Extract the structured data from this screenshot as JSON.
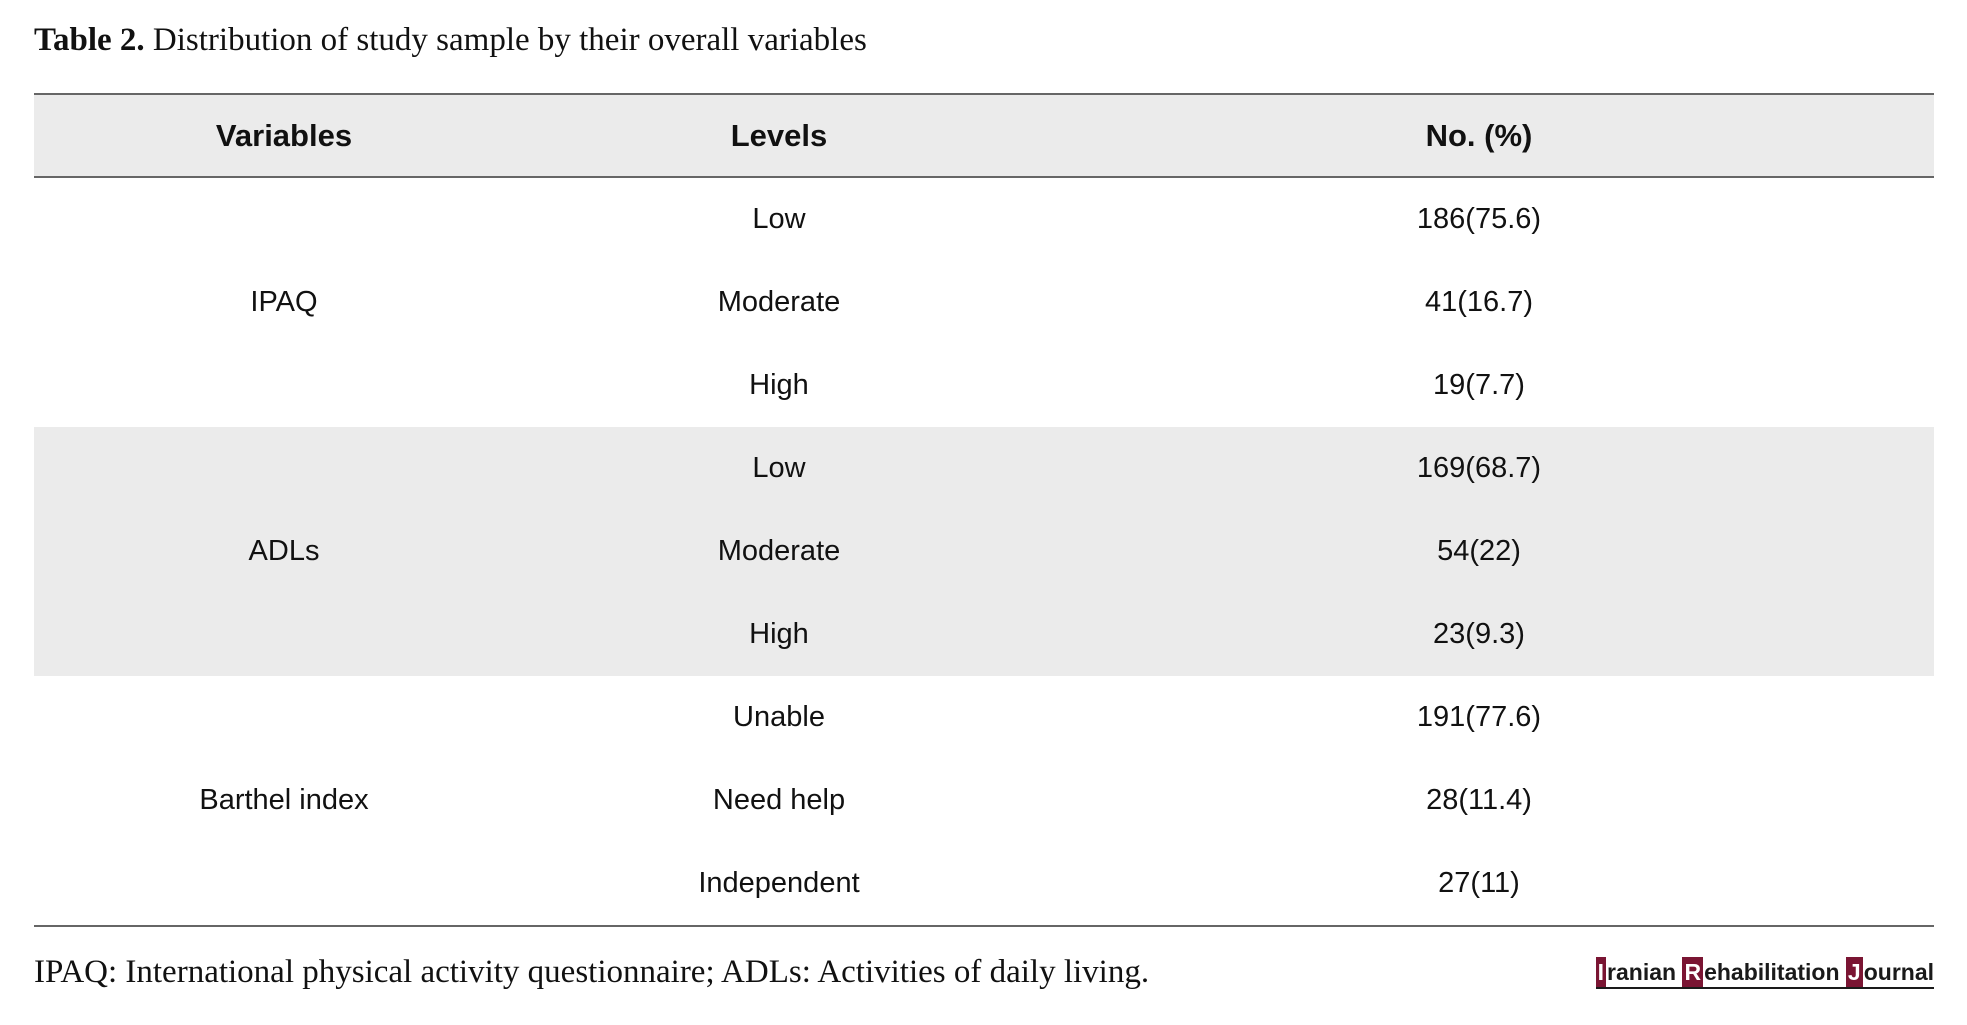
{
  "caption": {
    "label": "Table 2.",
    "text": "Distribution of study sample by their overall variables"
  },
  "table": {
    "headers": [
      "Variables",
      "Levels",
      "No. (%)"
    ],
    "groups": [
      {
        "variable": "IPAQ",
        "rows": [
          {
            "level": "Low",
            "value": "186(75.6)"
          },
          {
            "level": "Moderate",
            "value": "41(16.7)"
          },
          {
            "level": "High",
            "value": "19(7.7)"
          }
        ]
      },
      {
        "variable": "ADLs",
        "rows": [
          {
            "level": "Low",
            "value": "169(68.7)"
          },
          {
            "level": "Moderate",
            "value": "54(22)"
          },
          {
            "level": "High",
            "value": "23(9.3)"
          }
        ]
      },
      {
        "variable": "Barthel index",
        "rows": [
          {
            "level": "Unable",
            "value": "191(77.6)"
          },
          {
            "level": "Need help",
            "value": "28(11.4)"
          },
          {
            "level": "Independent",
            "value": "27(11)"
          }
        ]
      }
    ]
  },
  "footnote": "IPAQ: International physical activity questionnaire; ADLs: Activities of daily living.",
  "journal": {
    "words": [
      {
        "initial": "I",
        "rest": "ranian"
      },
      {
        "initial": "R",
        "rest": "ehabilitation"
      },
      {
        "initial": "J",
        "rest": "ournal"
      }
    ]
  },
  "colors": {
    "header_band": "#ebebeb",
    "rule": "#666666",
    "logo_accent": "#7a1533"
  }
}
